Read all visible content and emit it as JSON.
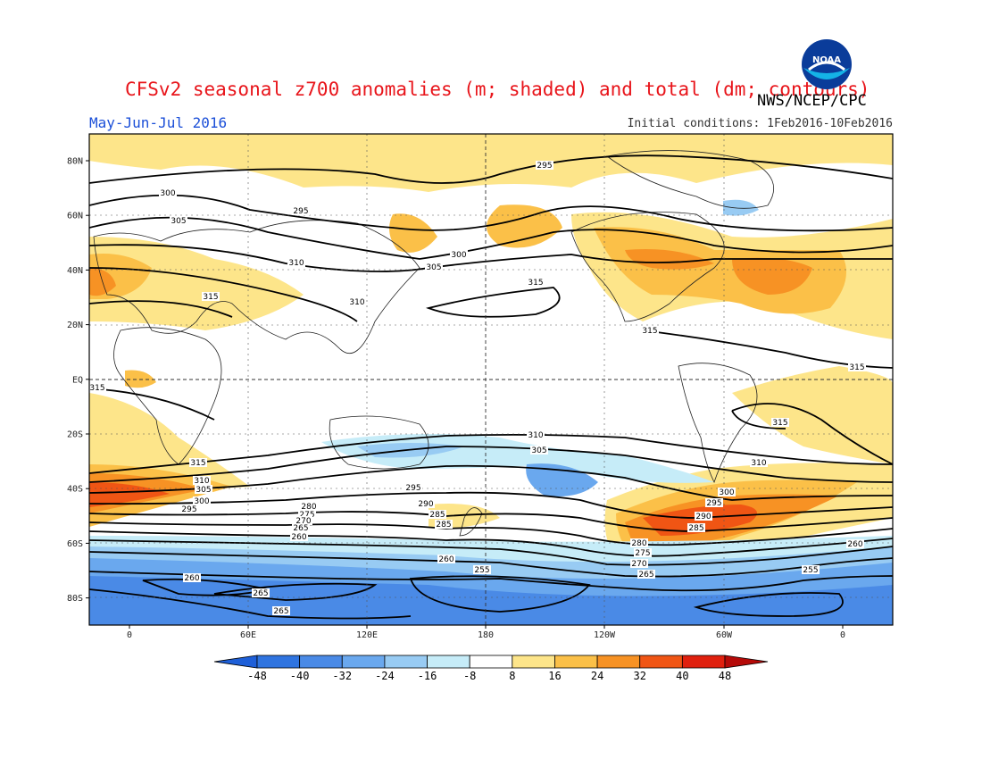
{
  "header": {
    "title": "CFSv2 seasonal z700 anomalies (m; shaded) and total (dm; contours)",
    "agency": "NWS/NCEP/CPC",
    "period": "May-Jun-Jul 2016",
    "initial_conditions": "Initial conditions: 1Feb2016-10Feb2016",
    "logo_text": "NOAA"
  },
  "axes": {
    "lat_labels": [
      "80N",
      "60N",
      "40N",
      "20N",
      "EQ",
      "20S",
      "40S",
      "60S",
      "80S"
    ],
    "lon_labels": [
      "0",
      "60E",
      "120E",
      "180",
      "120W",
      "60W",
      "0"
    ]
  },
  "colorbar": {
    "labels": [
      "-48",
      "-40",
      "-32",
      "-24",
      "-16",
      "-8",
      "8",
      "16",
      "24",
      "32",
      "40",
      "48"
    ],
    "colors": [
      "#1e5fd8",
      "#2f74e0",
      "#4a8ae6",
      "#6aa8ee",
      "#98cbf3",
      "#c6ecf8",
      "#ffffff",
      "#fde58a",
      "#fbc048",
      "#f79224",
      "#f05514",
      "#e0200e",
      "#b50a08"
    ]
  },
  "contour_labels": [
    "295",
    "300",
    "305",
    "310",
    "315",
    "310",
    "305",
    "300",
    "295",
    "290",
    "285",
    "280",
    "275",
    "270",
    "265",
    "260",
    "255"
  ]
}
